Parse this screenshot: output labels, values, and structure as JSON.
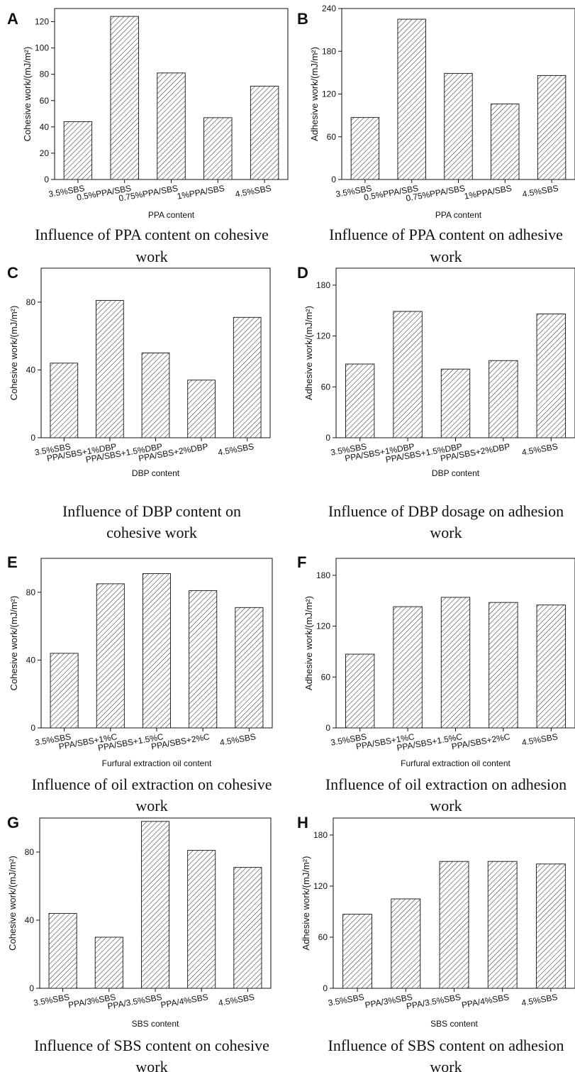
{
  "colors": {
    "bar_fill": "#ffffff",
    "bar_hatch": "#333333",
    "axis": "#111111"
  },
  "chart_data": [
    {
      "letter": "A",
      "type": "bar",
      "categories": [
        "3.5%SBS",
        "0.5%PPA/SBS",
        "0.75%PPA/SBS",
        "1%PPA/SBS",
        "4.5%SBS"
      ],
      "values": [
        44,
        124,
        81,
        47,
        71
      ],
      "ylim": [
        0,
        130
      ],
      "yticks": [
        0,
        20,
        40,
        60,
        80,
        100,
        120
      ],
      "ylabel": "Cohesive work/(mJ/m²)",
      "xlabel": "PPA content",
      "caption": [
        "Influence of PPA content on cohesive",
        "work"
      ]
    },
    {
      "letter": "B",
      "type": "bar",
      "categories": [
        "3.5%SBS",
        "0.5%PPA/SBS",
        "0.75%PPA/SBS",
        "1%PPA/SBS",
        "4.5%SBS"
      ],
      "values": [
        87,
        225,
        149,
        106,
        146
      ],
      "ylim": [
        0,
        240
      ],
      "yticks": [
        0,
        60,
        120,
        180,
        240
      ],
      "ylabel": "Adhesive work/(mJ/m²)",
      "xlabel": "PPA content",
      "caption": [
        "Influence of PPA content on adhesive",
        "work"
      ]
    },
    {
      "letter": "C",
      "type": "bar",
      "categories": [
        "3.5%SBS",
        "PPA/SBS+1%DBP",
        "PPA/SBS+1.5%DBP",
        "PPA/SBS+2%DBP",
        "4.5%SBS"
      ],
      "values": [
        44,
        81,
        50,
        34,
        71
      ],
      "ylim": [
        0,
        100
      ],
      "yticks": [
        0,
        40,
        80
      ],
      "ylabel": "Cohesive work/(mJ/m²)",
      "xlabel": "DBP content",
      "caption": [
        "Influence of DBP content on",
        "cohesive work"
      ]
    },
    {
      "letter": "D",
      "type": "bar",
      "categories": [
        "3.5%SBS",
        "PPA/SBS+1%DBP",
        "PPA/SBS+1.5%DBP",
        "PPA/SBS+2%DBP",
        "4.5%SBS"
      ],
      "values": [
        87,
        149,
        81,
        91,
        146
      ],
      "ylim": [
        0,
        200
      ],
      "yticks": [
        0,
        60,
        120,
        180
      ],
      "ylabel": "Adhesive work/(mJ/m²)",
      "xlabel": "DBP content",
      "caption": [
        "Influence of DBP dosage on adhesion",
        "work"
      ]
    },
    {
      "letter": "E",
      "type": "bar",
      "categories": [
        "3.5%SBS",
        "PPA/SBS+1%C",
        "PPA/SBS+1.5%C",
        "PPA/SBS+2%C",
        "4.5%SBS"
      ],
      "values": [
        44,
        85,
        91,
        81,
        71
      ],
      "ylim": [
        0,
        100
      ],
      "yticks": [
        0,
        40,
        80
      ],
      "ylabel": "Cohesive work/(mJ/m²)",
      "xlabel": "Furfural extraction oil content",
      "caption": [
        "Influence of oil extraction on cohesive",
        "work"
      ]
    },
    {
      "letter": "F",
      "type": "bar",
      "categories": [
        "3.5%SBS",
        "PPA/SBS+1%C",
        "PPA/SBS+1.5%C",
        "PPA/SBS+2%C",
        "4.5%SBS"
      ],
      "values": [
        87,
        143,
        154,
        148,
        145
      ],
      "ylim": [
        0,
        200
      ],
      "yticks": [
        0,
        60,
        120,
        180
      ],
      "ylabel": "Adhesive work/(mJ/m²)",
      "xlabel": "Furfural extraction oil content",
      "caption": [
        "Influence of oil extraction on adhesion",
        "work"
      ]
    },
    {
      "letter": "G",
      "type": "bar",
      "categories": [
        "3.5%SBS",
        "PPA/3%SBS",
        "PPA/3.5%SBS",
        "PPA/4%SBS",
        "4.5%SBS"
      ],
      "values": [
        44,
        30,
        98,
        81,
        71
      ],
      "ylim": [
        0,
        100
      ],
      "yticks": [
        0,
        40,
        80
      ],
      "ylabel": "Cohesive work/(mJ/m²)",
      "xlabel": "SBS content",
      "caption": [
        "Influence of SBS content on cohesive",
        "work"
      ]
    },
    {
      "letter": "H",
      "type": "bar",
      "categories": [
        "3.5%SBS",
        "PPA/3%SBS",
        "PPA/3.5%SBS",
        "PPA/4%SBS",
        "4.5%SBS"
      ],
      "values": [
        87,
        105,
        149,
        149,
        146
      ],
      "ylim": [
        0,
        200
      ],
      "yticks": [
        0,
        60,
        120,
        180
      ],
      "ylabel": "Adhesive work/(mJ/m²)",
      "xlabel": "SBS content",
      "caption": [
        "Influence of SBS content on adhesion",
        "work"
      ]
    }
  ]
}
